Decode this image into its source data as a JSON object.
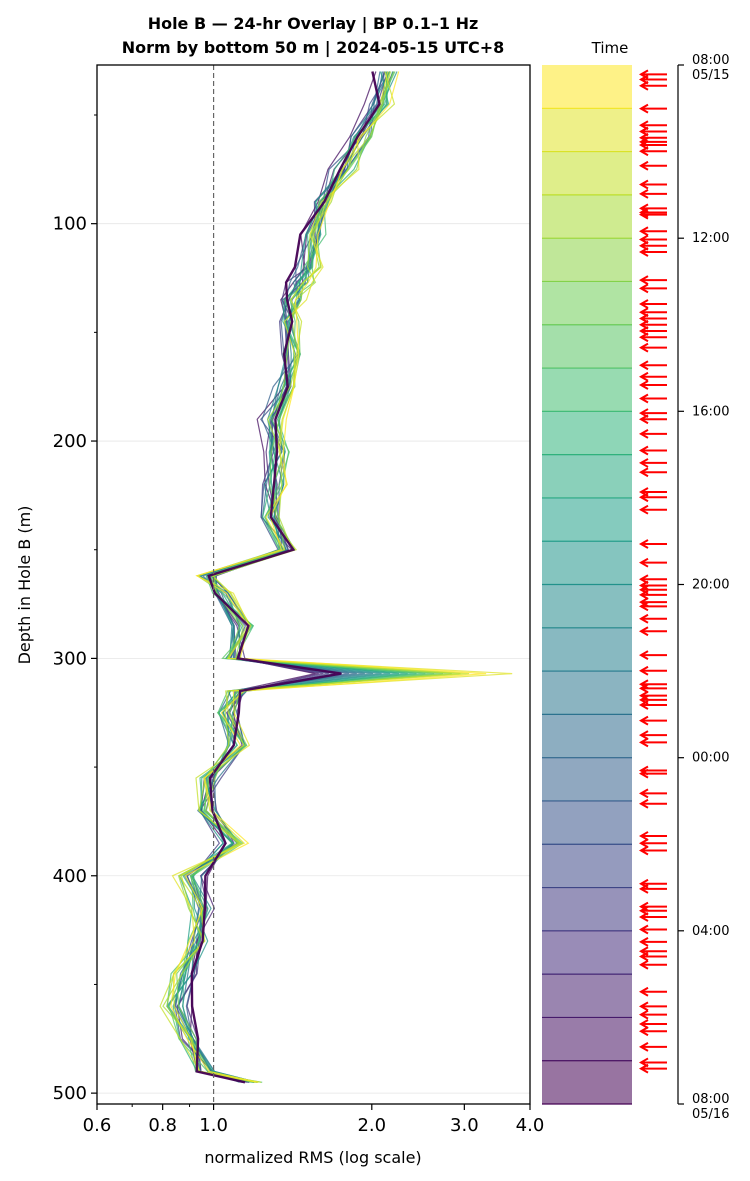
{
  "chart_data": {
    "type": "line",
    "title": [
      "Hole B — 24-hr Overlay  |  BP 0.1–1 Hz",
      "Norm by bottom 50 m  |  2024-05-15 UTC+8"
    ],
    "xlabel": "normalized RMS  (log scale)",
    "ylabel": "Depth in Hole B (m)",
    "x_scale": "log",
    "xlim": [
      0.6,
      4.0
    ],
    "ylim": [
      505,
      27
    ],
    "x_ticks": [
      "0.6",
      "0.8",
      "1.0",
      "2.0",
      "3.0",
      "4.0"
    ],
    "y_ticks": [
      "100",
      "200",
      "300",
      "400",
      "500"
    ],
    "reference_line_x": 1.0,
    "grid": "horizontal",
    "series_count": 24,
    "color_scale": "viridis (dark purple = early, yellow = late)",
    "profiles": {
      "depth": [
        30,
        45,
        60,
        75,
        90,
        105,
        120,
        127,
        135,
        145,
        160,
        175,
        190,
        205,
        220,
        235,
        250,
        262,
        270,
        285,
        300,
        307,
        315,
        325,
        340,
        355,
        370,
        385,
        400,
        415,
        430,
        445,
        460,
        475,
        490,
        495
      ],
      "mean": [
        2.1,
        1.98,
        1.88,
        1.7,
        1.58,
        1.52,
        1.47,
        1.42,
        1.38,
        1.36,
        1.37,
        1.34,
        1.26,
        1.3,
        1.28,
        1.27,
        1.36,
        0.98,
        1.02,
        1.12,
        1.1,
        1.55,
        1.12,
        1.08,
        1.1,
        1.0,
        0.99,
        1.06,
        0.94,
        0.97,
        0.95,
        0.9,
        0.88,
        0.91,
        0.97,
        1.15
      ],
      "latest": [
        2.18,
        2.15,
        1.95,
        1.82,
        1.66,
        1.6,
        1.55,
        1.52,
        1.45,
        1.42,
        1.44,
        1.4,
        1.32,
        1.36,
        1.34,
        1.3,
        1.4,
        0.96,
        1.05,
        1.15,
        1.08,
        3.3,
        1.1,
        1.05,
        1.12,
        0.96,
        0.95,
        1.12,
        0.86,
        0.93,
        0.92,
        0.85,
        0.82,
        0.88,
        0.96,
        1.2
      ]
    },
    "colorbar": {
      "title": "Time",
      "ticks": [
        {
          "time": "08:00",
          "date": "05/15",
          "frac": 0.0
        },
        {
          "time": "12:00",
          "date": "",
          "frac": 0.1667
        },
        {
          "time": "16:00",
          "date": "",
          "frac": 0.3333
        },
        {
          "time": "20:00",
          "date": "",
          "frac": 0.5
        },
        {
          "time": "00:00",
          "date": "",
          "frac": 0.6667
        },
        {
          "time": "04:00",
          "date": "",
          "frac": 0.8333
        },
        {
          "time": "08:00",
          "date": "05/16",
          "frac": 1.0
        }
      ],
      "bands": 24,
      "arrow_color": "#ff0000",
      "arrow_fracs": [
        0.009,
        0.014,
        0.02,
        0.042,
        0.058,
        0.064,
        0.07,
        0.074,
        0.077,
        0.083,
        0.097,
        0.115,
        0.124,
        0.138,
        0.142,
        0.144,
        0.16,
        0.168,
        0.174,
        0.18,
        0.207,
        0.215,
        0.23,
        0.238,
        0.244,
        0.25,
        0.256,
        0.262,
        0.272,
        0.289,
        0.3,
        0.308,
        0.321,
        0.335,
        0.341,
        0.355,
        0.371,
        0.383,
        0.392,
        0.411,
        0.416,
        0.428,
        0.461,
        0.479,
        0.495,
        0.501,
        0.505,
        0.51,
        0.517,
        0.521,
        0.533,
        0.545,
        0.568,
        0.583,
        0.596,
        0.6,
        0.607,
        0.611,
        0.616,
        0.631,
        0.645,
        0.652,
        0.679,
        0.682,
        0.701,
        0.711,
        0.742,
        0.749,
        0.756,
        0.788,
        0.793,
        0.81,
        0.814,
        0.82,
        0.832,
        0.844,
        0.853,
        0.858,
        0.866,
        0.892,
        0.906,
        0.914,
        0.923,
        0.93,
        0.945,
        0.96,
        0.966
      ]
    }
  },
  "labels": {
    "colorbar_title": "Time"
  }
}
